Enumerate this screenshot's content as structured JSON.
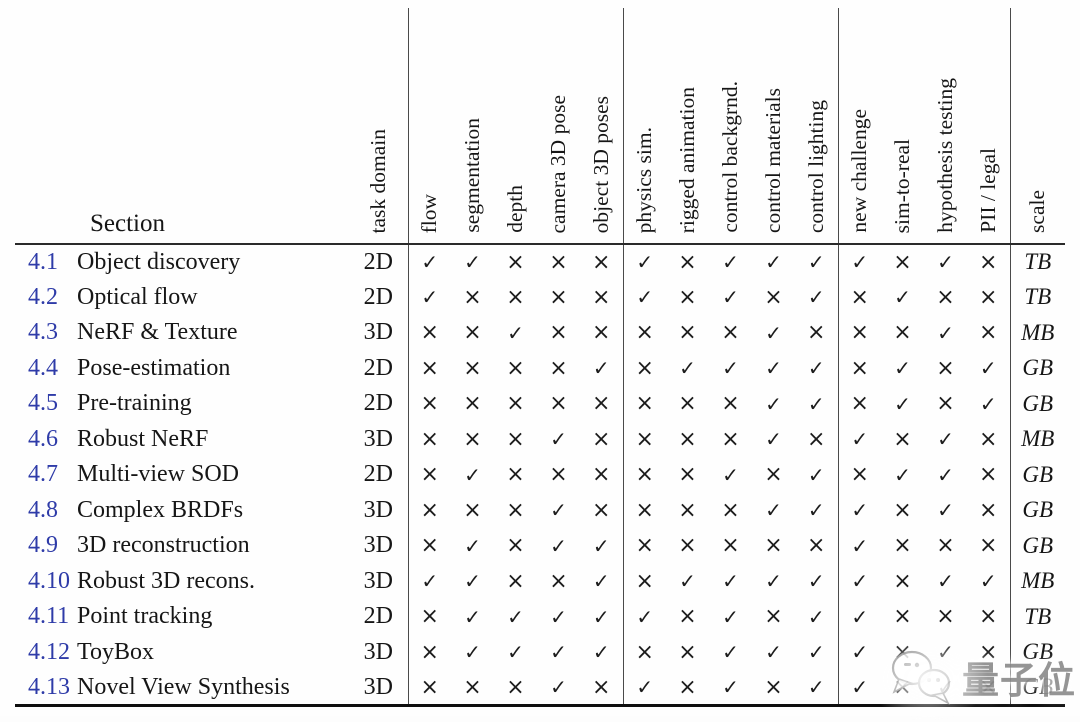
{
  "table": {
    "section_header": "Section",
    "columns": [
      {
        "key": "task-domain",
        "label": "task domain"
      },
      {
        "key": "flow",
        "label": "flow"
      },
      {
        "key": "segmentation",
        "label": "segmentation"
      },
      {
        "key": "depth",
        "label": "depth"
      },
      {
        "key": "camera-3d-pose",
        "label": "camera 3D pose"
      },
      {
        "key": "object-3d-poses",
        "label": "object 3D poses"
      },
      {
        "key": "physics-sim",
        "label": "physics sim."
      },
      {
        "key": "rigged-animation",
        "label": "rigged animation"
      },
      {
        "key": "control-backgrnd",
        "label": "control backgrnd."
      },
      {
        "key": "control-materials",
        "label": "control materials"
      },
      {
        "key": "control-lighting",
        "label": "control lighting"
      },
      {
        "key": "new-challenge",
        "label": "new challenge"
      },
      {
        "key": "sim-to-real",
        "label": "sim-to-real"
      },
      {
        "key": "hypothesis-testing",
        "label": "hypothesis testing"
      },
      {
        "key": "pii-legal",
        "label": "PII / legal"
      },
      {
        "key": "scale",
        "label": "scale"
      }
    ],
    "rows": [
      {
        "num": "4.1",
        "name": "Object discovery",
        "domain": "2D",
        "marks": [
          1,
          1,
          0,
          0,
          0,
          1,
          0,
          1,
          1,
          1,
          1,
          0,
          1,
          0
        ],
        "scale": "TB"
      },
      {
        "num": "4.2",
        "name": "Optical flow",
        "domain": "2D",
        "marks": [
          1,
          0,
          0,
          0,
          0,
          1,
          0,
          1,
          0,
          1,
          0,
          1,
          0,
          0
        ],
        "scale": "TB"
      },
      {
        "num": "4.3",
        "name": "NeRF & Texture",
        "domain": "3D",
        "marks": [
          0,
          0,
          1,
          0,
          0,
          0,
          0,
          0,
          1,
          0,
          0,
          0,
          1,
          0
        ],
        "scale": "MB"
      },
      {
        "num": "4.4",
        "name": "Pose-estimation",
        "domain": "2D",
        "marks": [
          0,
          0,
          0,
          0,
          1,
          0,
          1,
          1,
          1,
          1,
          0,
          1,
          0,
          1
        ],
        "scale": "GB"
      },
      {
        "num": "4.5",
        "name": "Pre-training",
        "domain": "2D",
        "marks": [
          0,
          0,
          0,
          0,
          0,
          0,
          0,
          0,
          1,
          1,
          0,
          1,
          0,
          1
        ],
        "scale": "GB"
      },
      {
        "num": "4.6",
        "name": "Robust NeRF",
        "domain": "3D",
        "marks": [
          0,
          0,
          0,
          1,
          0,
          0,
          0,
          0,
          1,
          0,
          1,
          0,
          1,
          0
        ],
        "scale": "MB"
      },
      {
        "num": "4.7",
        "name": "Multi-view SOD",
        "domain": "2D",
        "marks": [
          0,
          1,
          0,
          0,
          0,
          0,
          0,
          1,
          0,
          1,
          0,
          1,
          1,
          0
        ],
        "scale": "GB"
      },
      {
        "num": "4.8",
        "name": "Complex BRDFs",
        "domain": "3D",
        "marks": [
          0,
          0,
          0,
          1,
          0,
          0,
          0,
          0,
          1,
          1,
          1,
          0,
          1,
          0
        ],
        "scale": "GB"
      },
      {
        "num": "4.9",
        "name": "3D reconstruction",
        "domain": "3D",
        "marks": [
          0,
          1,
          0,
          1,
          1,
          0,
          0,
          0,
          0,
          0,
          1,
          0,
          0,
          0
        ],
        "scale": "GB"
      },
      {
        "num": "4.10",
        "name": "Robust 3D recons.",
        "domain": "3D",
        "marks": [
          1,
          1,
          0,
          0,
          1,
          0,
          1,
          1,
          1,
          1,
          1,
          0,
          1,
          1
        ],
        "scale": "MB"
      },
      {
        "num": "4.11",
        "name": "Point tracking",
        "domain": "2D",
        "marks": [
          0,
          1,
          1,
          1,
          1,
          1,
          0,
          1,
          0,
          1,
          1,
          0,
          0,
          0
        ],
        "scale": "TB"
      },
      {
        "num": "4.12",
        "name": "ToyBox",
        "domain": "3D",
        "marks": [
          0,
          1,
          1,
          1,
          1,
          0,
          0,
          1,
          1,
          1,
          1,
          0,
          1,
          0
        ],
        "scale": "GB"
      },
      {
        "num": "4.13",
        "name": "Novel View Synthesis",
        "domain": "3D",
        "marks": [
          0,
          0,
          0,
          1,
          0,
          1,
          0,
          1,
          0,
          1,
          1,
          0,
          1,
          0
        ],
        "scale": "GB"
      }
    ]
  },
  "symbols": {
    "check": "✓",
    "cross": "×"
  },
  "colors": {
    "section_link": "#2e3ba8",
    "text": "#161616",
    "rule": "#4a4a4a",
    "watermark_gray": "#8e8e8e"
  },
  "watermark": {
    "text": "量子位",
    "icon": "wechat-chat-bubbles-icon"
  }
}
